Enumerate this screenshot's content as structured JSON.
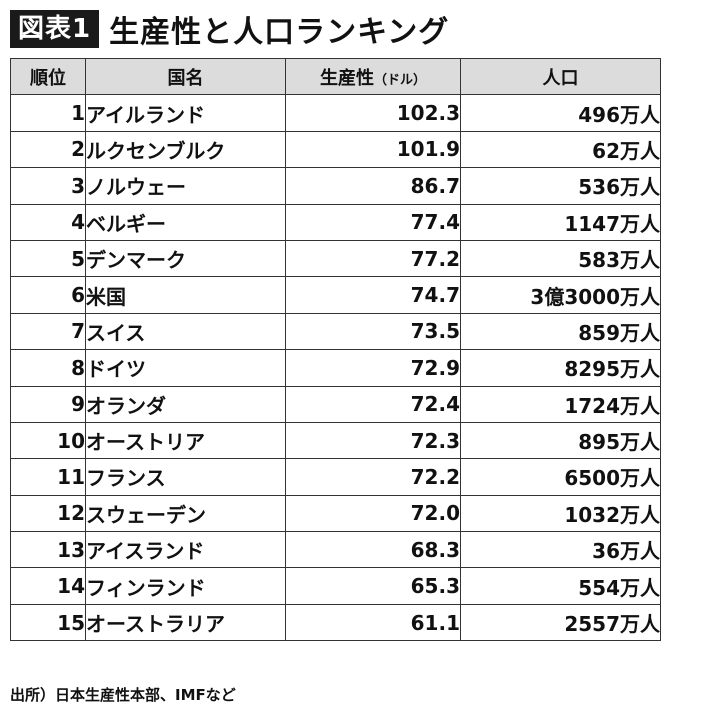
{
  "header": {
    "badge": "図表1",
    "title": "生産性と人口ランキング"
  },
  "table": {
    "headers": {
      "rank": "順位",
      "country": "国名",
      "productivity": "生産性",
      "productivity_unit": "（ドル）",
      "population": "人口"
    },
    "rows": [
      {
        "rank": "1",
        "country": "アイルランド",
        "productivity": "102.3",
        "population": "496万人"
      },
      {
        "rank": "2",
        "country": "ルクセンブルク",
        "productivity": "101.9",
        "population": "62万人"
      },
      {
        "rank": "3",
        "country": "ノルウェー",
        "productivity": "86.7",
        "population": "536万人"
      },
      {
        "rank": "4",
        "country": "ベルギー",
        "productivity": "77.4",
        "population": "1147万人"
      },
      {
        "rank": "5",
        "country": "デンマーク",
        "productivity": "77.2",
        "population": "583万人"
      },
      {
        "rank": "6",
        "country": "米国",
        "productivity": "74.7",
        "population": "3億3000万人"
      },
      {
        "rank": "7",
        "country": "スイス",
        "productivity": "73.5",
        "population": "859万人"
      },
      {
        "rank": "8",
        "country": "ドイツ",
        "productivity": "72.9",
        "population": "8295万人"
      },
      {
        "rank": "9",
        "country": "オランダ",
        "productivity": "72.4",
        "population": "1724万人"
      },
      {
        "rank": "10",
        "country": "オーストリア",
        "productivity": "72.3",
        "population": "895万人"
      },
      {
        "rank": "11",
        "country": "フランス",
        "productivity": "72.2",
        "population": "6500万人"
      },
      {
        "rank": "12",
        "country": "スウェーデン",
        "productivity": "72.0",
        "population": "1032万人"
      },
      {
        "rank": "13",
        "country": "アイスランド",
        "productivity": "68.3",
        "population": "36万人"
      },
      {
        "rank": "14",
        "country": "フィンランド",
        "productivity": "65.3",
        "population": "554万人"
      },
      {
        "rank": "15",
        "country": "オーストラリア",
        "productivity": "61.1",
        "population": "2557万人"
      }
    ]
  },
  "source": "出所）日本生産性本部、IMFなど"
}
